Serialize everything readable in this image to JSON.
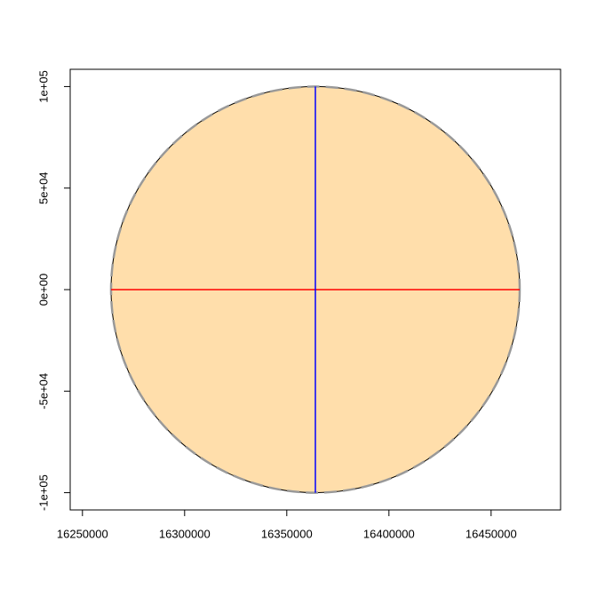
{
  "chart_data": {
    "type": "circle",
    "xlim": [
      16244000,
      16484000
    ],
    "ylim": [
      -108500,
      108500
    ],
    "xticks": [
      16250000,
      16300000,
      16350000,
      16400000,
      16450000
    ],
    "yticks": [
      {
        "value": -100000,
        "label": "-1e+05"
      },
      {
        "value": -50000,
        "label": "-5e+04"
      },
      {
        "value": 0,
        "label": "0e+00"
      },
      {
        "value": 50000,
        "label": "5e+04"
      },
      {
        "value": 100000,
        "label": "1e+05"
      }
    ],
    "circle": {
      "center": [
        16364000,
        0
      ],
      "radius": 100000,
      "fill": "#ffdeab",
      "stroke": "#000000",
      "outline_color": "#999999"
    },
    "segments": [
      {
        "x": [
          16264000,
          16464000
        ],
        "y": [
          0,
          0
        ],
        "color": "#ff0000"
      },
      {
        "x": [
          16364000,
          16364000
        ],
        "y": [
          -100000,
          100000
        ],
        "color": "#0000ff"
      }
    ]
  }
}
